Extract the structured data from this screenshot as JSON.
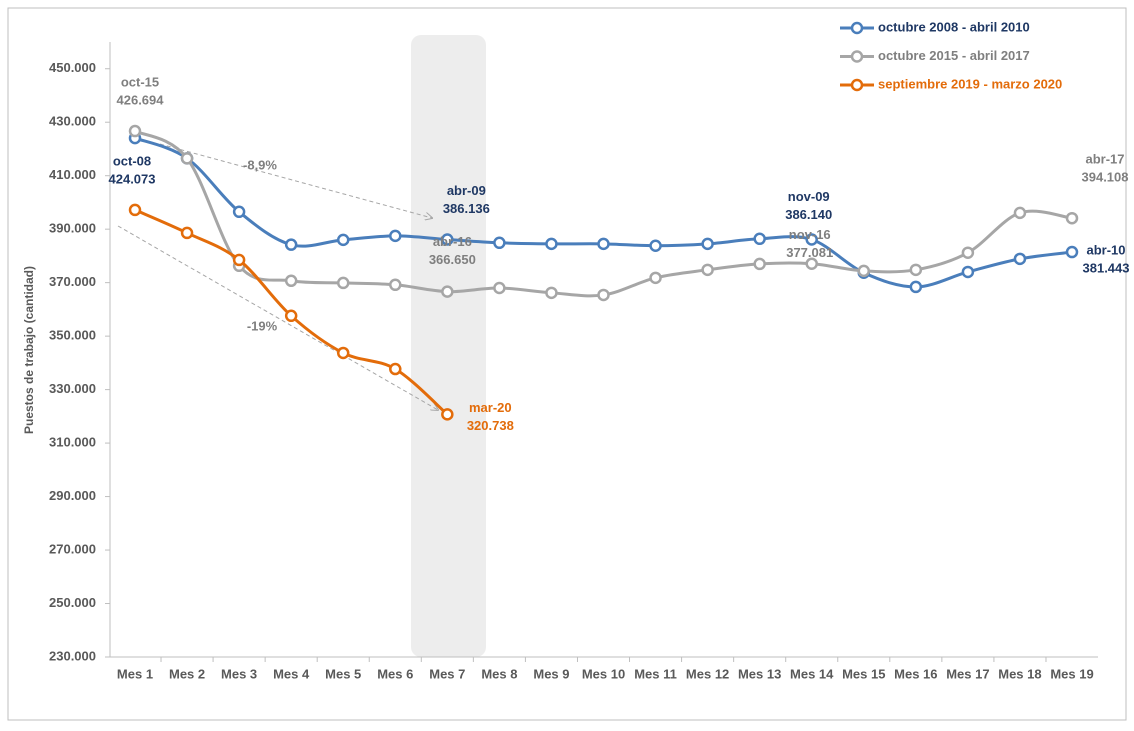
{
  "chart_data": {
    "type": "line",
    "y_label": "Puestos de trabajo (cantidad)",
    "categories": [
      "Mes 1",
      "Mes 2",
      "Mes 3",
      "Mes 4",
      "Mes 5",
      "Mes 6",
      "Mes 7",
      "Mes 8",
      "Mes 9",
      "Mes 10",
      "Mes 11",
      "Mes 12",
      "Mes 13",
      "Mes 14",
      "Mes 15",
      "Mes 16",
      "Mes 17",
      "Mes 18",
      "Mes 19"
    ],
    "ylim": [
      230000,
      460000
    ],
    "yticks": [
      {
        "value": 230000,
        "label": "230.000"
      },
      {
        "value": 250000,
        "label": "250.000"
      },
      {
        "value": 270000,
        "label": "270.000"
      },
      {
        "value": 290000,
        "label": "290.000"
      },
      {
        "value": 310000,
        "label": "310.000"
      },
      {
        "value": 330000,
        "label": "330.000"
      },
      {
        "value": 350000,
        "label": "350.000"
      },
      {
        "value": 370000,
        "label": "370.000"
      },
      {
        "value": 390000,
        "label": "390.000"
      },
      {
        "value": 410000,
        "label": "410.000"
      },
      {
        "value": 430000,
        "label": "430.000"
      },
      {
        "value": 450000,
        "label": "450.000"
      }
    ],
    "series": [
      {
        "name": "octubre 2008 - abril 2010",
        "color": "#4a7ebb",
        "label_color": "#1f3864",
        "values": [
          424073,
          416500,
          396500,
          384200,
          386000,
          387500,
          386136,
          384900,
          384500,
          384500,
          383800,
          384500,
          386400,
          386140,
          373700,
          368400,
          374000,
          378900,
          381443
        ],
        "point_labels": [
          "oct-08",
          null,
          null,
          null,
          null,
          null,
          "abr-09",
          null,
          null,
          null,
          null,
          null,
          null,
          "nov-09",
          null,
          null,
          null,
          null,
          "abr-10"
        ],
        "value_labels": [
          "424.073",
          null,
          null,
          null,
          null,
          null,
          "386.136",
          null,
          null,
          null,
          null,
          null,
          null,
          "386.140",
          null,
          null,
          null,
          null,
          "381.443"
        ]
      },
      {
        "name": "octubre 2015 - abril 2017",
        "color": "#a6a6a6",
        "label_color": "#7f7f7f",
        "values": [
          426694,
          416500,
          376300,
          370700,
          369900,
          369200,
          366650,
          368000,
          366200,
          365400,
          371800,
          374800,
          377000,
          377081,
          374400,
          374800,
          381200,
          396100,
          394108
        ],
        "point_labels": [
          "oct-15",
          null,
          null,
          null,
          null,
          null,
          "abr-16",
          null,
          null,
          null,
          null,
          null,
          null,
          "nov-16",
          null,
          null,
          null,
          null,
          "abr-17"
        ],
        "value_labels": [
          "426.694",
          null,
          null,
          null,
          null,
          null,
          "366.650",
          null,
          null,
          null,
          null,
          null,
          null,
          "377.081",
          null,
          null,
          null,
          null,
          "394.108"
        ]
      },
      {
        "name": "septiembre 2019 - marzo 2020",
        "color": "#e36c0a",
        "label_color": "#e36c0a",
        "values": [
          397200,
          388600,
          378500,
          357600,
          343700,
          337700,
          320738,
          null,
          null,
          null,
          null,
          null,
          null,
          null,
          null,
          null,
          null,
          null,
          null
        ],
        "point_labels": [
          null,
          null,
          null,
          null,
          null,
          null,
          "mar-20",
          null,
          null,
          null,
          null,
          null,
          null,
          null,
          null,
          null,
          null,
          null,
          null
        ],
        "value_labels": [
          null,
          null,
          null,
          null,
          null,
          null,
          "320.738",
          null,
          null,
          null,
          null,
          null,
          null,
          null,
          null,
          null,
          null,
          null,
          null
        ]
      }
    ],
    "annotations": [
      "-8,9%",
      "-19%"
    ],
    "legend": "top-right"
  }
}
